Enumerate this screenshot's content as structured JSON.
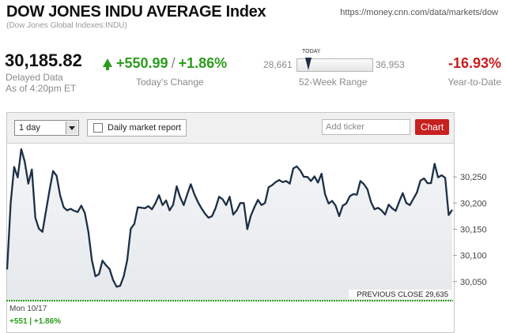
{
  "header": {
    "title": "DOW JONES INDU AVERAGE Index",
    "subtitle": "(Dow Jones Global Indexes:INDU)",
    "url": "https://money.cnn.com/data/markets/dow"
  },
  "quote": {
    "price": "30,185.82",
    "delayed": "Delayed Data",
    "as_of": "As of 4:20pm ET",
    "change": "+550.99",
    "change_separator": "/",
    "change_percent": "+1.86%",
    "change_label": "Today's Change",
    "range_low": "28,661",
    "range_high": "36,953",
    "range_label": "52-Week Range",
    "range_today_label": "TODAY",
    "range_today_position": 0.15,
    "ytd": "-16.93%",
    "ytd_label": "Year-to-Date"
  },
  "toolbar": {
    "period_selected": "1 day",
    "report_label": "Daily market report",
    "ticker_placeholder": "Add ticker",
    "chart_button": "Chart"
  },
  "footer": {
    "date": "Mon 10/17",
    "change": "+551 | +1.86%"
  },
  "colors": {
    "positive": "#2a9d1c",
    "negative": "#c81c1c",
    "line": "#1c2f45",
    "chart_button": "#c72020"
  },
  "chart_data": {
    "type": "area",
    "title": "",
    "xlabel": "",
    "ylabel": "",
    "ylim": [
      30015,
      30315
    ],
    "yticks": [
      "30,250",
      "30,200",
      "30,150",
      "30,100",
      "30,050"
    ],
    "ytick_values": [
      30250,
      30200,
      30150,
      30100,
      30050
    ],
    "previous_close_label": "PREVIOUS CLOSE 29,635",
    "series": [
      {
        "values": [
          30073,
          30200,
          30269,
          30249,
          30303,
          30279,
          30237,
          30264,
          30172,
          30151,
          30145,
          30185,
          30224,
          30261,
          30252,
          30215,
          30192,
          30186,
          30189,
          30185,
          30183,
          30195,
          30181,
          30145,
          30091,
          30060,
          30064,
          30090,
          30081,
          30074,
          30053,
          30040,
          30042,
          30060,
          30091,
          30151,
          30160,
          30192,
          30191,
          30190,
          30194,
          30188,
          30200,
          30215,
          30196,
          30205,
          30186,
          30197,
          30232,
          30211,
          30196,
          30217,
          30236,
          30217,
          30202,
          30190,
          30180,
          30172,
          30175,
          30190,
          30212,
          30207,
          30196,
          30212,
          30178,
          30186,
          30200,
          30200,
          30150,
          30176,
          30192,
          30206,
          30196,
          30200,
          30230,
          30234,
          30240,
          30244,
          30240,
          30242,
          30237,
          30266,
          30270,
          30262,
          30250,
          30250,
          30242,
          30251,
          30239,
          30256,
          30217,
          30199,
          30204,
          30195,
          30175,
          30195,
          30199,
          30213,
          30217,
          30216,
          30242,
          30236,
          30226,
          30202,
          30188,
          30191,
          30186,
          30178,
          30197,
          30190,
          30185,
          30203,
          30219,
          30200,
          30196,
          30208,
          30220,
          30243,
          30247,
          30238,
          30238,
          30275,
          30249,
          30253,
          30248,
          30177,
          30187
        ]
      }
    ]
  }
}
